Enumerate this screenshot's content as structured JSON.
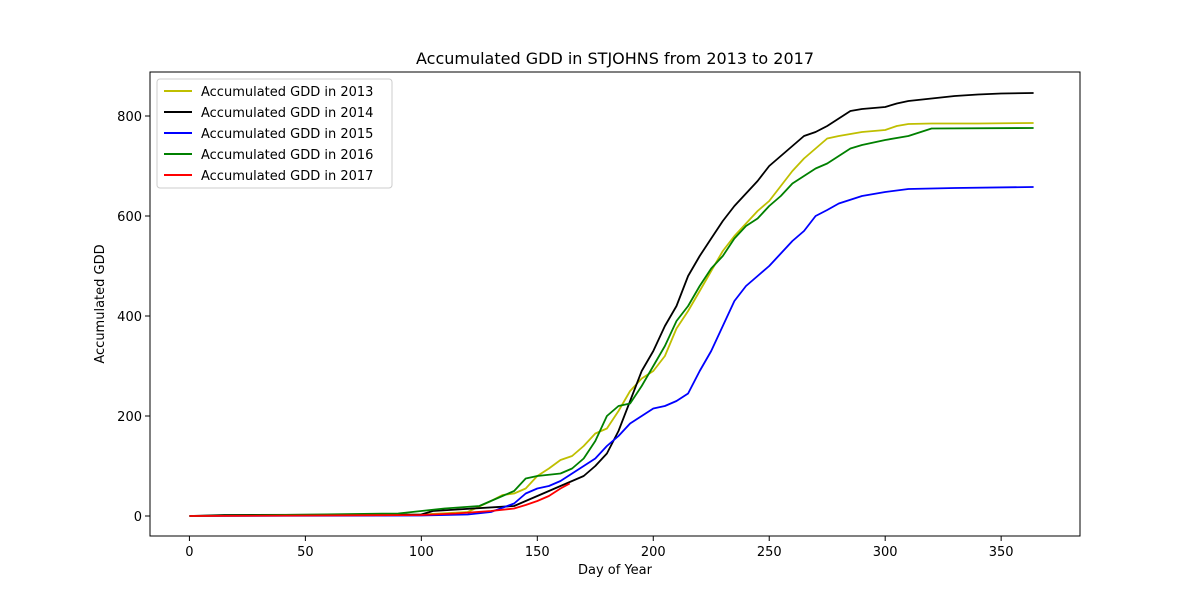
{
  "chart_data": {
    "type": "line",
    "title": "Accumulated GDD in STJOHNS from 2013 to 2017",
    "xlabel": "Day of Year",
    "ylabel": "Accumulated GDD",
    "xlim": [
      -17,
      384
    ],
    "ylim": [
      -40,
      888
    ],
    "xticks": [
      0,
      50,
      100,
      150,
      200,
      250,
      300,
      350
    ],
    "yticks": [
      0,
      200,
      400,
      600,
      800
    ],
    "legend_position": "upper-left",
    "grid": false,
    "series": [
      {
        "name": "Accumulated GDD in 2013",
        "color": "#bfbf00",
        "x": [
          0,
          40,
          80,
          100,
          120,
          130,
          135,
          140,
          145,
          150,
          155,
          160,
          165,
          170,
          175,
          180,
          185,
          190,
          195,
          200,
          205,
          210,
          215,
          220,
          225,
          230,
          235,
          240,
          245,
          250,
          255,
          260,
          265,
          270,
          275,
          280,
          290,
          300,
          305,
          310,
          320,
          340,
          364
        ],
        "y": [
          0,
          1,
          2,
          3,
          8,
          30,
          42,
          45,
          55,
          80,
          95,
          112,
          120,
          140,
          165,
          175,
          210,
          250,
          275,
          290,
          320,
          375,
          410,
          450,
          490,
          530,
          560,
          585,
          610,
          630,
          660,
          690,
          715,
          735,
          755,
          760,
          768,
          772,
          780,
          784,
          785,
          785,
          786
        ]
      },
      {
        "name": "Accumulated GDD in 2014",
        "color": "#000000",
        "x": [
          0,
          15,
          100,
          105,
          140,
          160,
          170,
          175,
          180,
          185,
          190,
          195,
          200,
          205,
          210,
          215,
          220,
          225,
          230,
          235,
          240,
          245,
          250,
          255,
          260,
          265,
          270,
          275,
          280,
          285,
          290,
          300,
          305,
          310,
          320,
          330,
          340,
          350,
          364
        ],
        "y": [
          0,
          2,
          3,
          10,
          20,
          60,
          80,
          100,
          125,
          170,
          230,
          290,
          330,
          380,
          420,
          480,
          520,
          555,
          590,
          620,
          645,
          670,
          700,
          720,
          740,
          760,
          768,
          780,
          795,
          810,
          814,
          818,
          825,
          830,
          835,
          840,
          843,
          845,
          846
        ]
      },
      {
        "name": "Accumulated GDD in 2015",
        "color": "#0000ff",
        "x": [
          0,
          100,
          120,
          130,
          140,
          145,
          150,
          155,
          160,
          165,
          170,
          175,
          180,
          185,
          190,
          195,
          200,
          205,
          210,
          215,
          220,
          225,
          230,
          235,
          240,
          245,
          250,
          255,
          260,
          265,
          270,
          275,
          280,
          290,
          300,
          310,
          330,
          364
        ],
        "y": [
          0,
          1,
          3,
          8,
          25,
          45,
          55,
          60,
          70,
          85,
          100,
          115,
          140,
          160,
          185,
          200,
          215,
          220,
          230,
          245,
          290,
          330,
          380,
          430,
          460,
          480,
          500,
          525,
          550,
          570,
          600,
          612,
          625,
          640,
          648,
          654,
          656,
          658
        ]
      },
      {
        "name": "Accumulated GDD in 2016",
        "color": "#008000",
        "x": [
          0,
          55,
          90,
          100,
          110,
          125,
          130,
          135,
          140,
          145,
          150,
          160,
          165,
          170,
          175,
          180,
          185,
          190,
          195,
          200,
          205,
          210,
          215,
          220,
          225,
          230,
          235,
          240,
          245,
          250,
          255,
          260,
          265,
          270,
          275,
          280,
          285,
          290,
          300,
          310,
          320,
          364
        ],
        "y": [
          0,
          3,
          5,
          10,
          15,
          20,
          30,
          40,
          50,
          75,
          80,
          85,
          95,
          115,
          150,
          200,
          220,
          225,
          260,
          300,
          340,
          390,
          420,
          460,
          495,
          520,
          555,
          580,
          595,
          620,
          640,
          665,
          680,
          695,
          705,
          720,
          735,
          742,
          752,
          760,
          775,
          776
        ]
      },
      {
        "name": "Accumulated GDD in 2017",
        "color": "#ff0000",
        "x": [
          0,
          100,
          115,
          130,
          140,
          145,
          150,
          155,
          160,
          164
        ],
        "y": [
          0,
          2,
          5,
          10,
          15,
          22,
          30,
          40,
          55,
          65
        ]
      }
    ]
  }
}
